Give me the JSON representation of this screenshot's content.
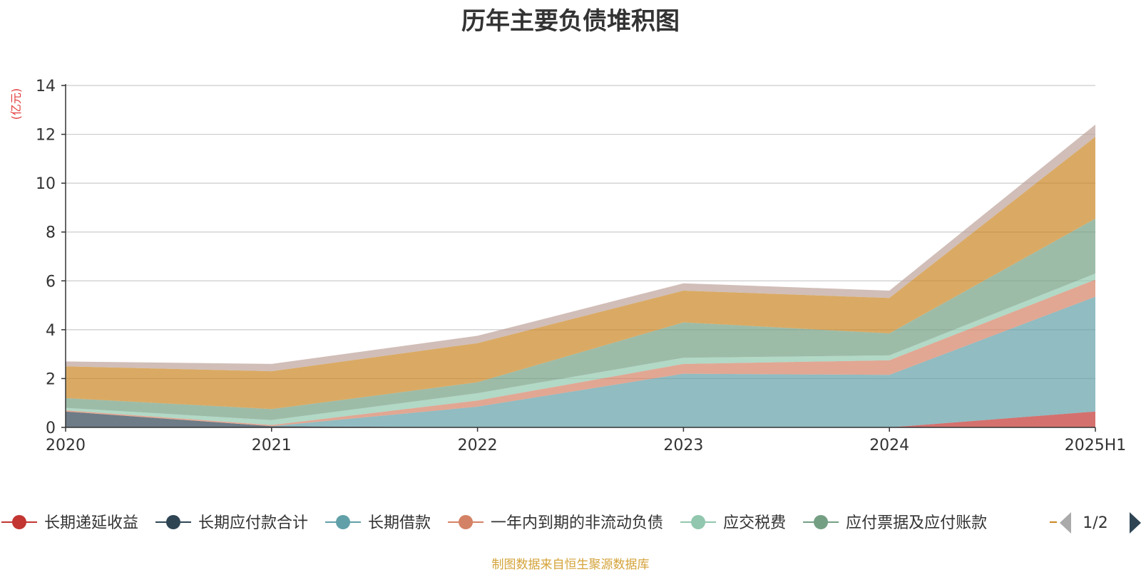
{
  "chart_data": {
    "type": "area",
    "stacked": true,
    "title": "历年主要负债堆积图",
    "unit": "(亿元)",
    "categories": [
      "2020",
      "2021",
      "2022",
      "2023",
      "2024",
      "2025H1"
    ],
    "y_ticks": [
      "0",
      "2",
      "4",
      "6",
      "8",
      "10",
      "12",
      "14"
    ],
    "ylim": [
      0,
      14
    ],
    "grid": true,
    "legend_position": "bottom",
    "legend_page": "1/2",
    "series": [
      {
        "name": "长期递延收益",
        "color": "#c23531",
        "values": [
          0,
          0,
          0,
          0,
          0,
          0.65
        ]
      },
      {
        "name": "长期应付款合计",
        "color": "#2f4554",
        "values": [
          0.65,
          0.05,
          0,
          0,
          0,
          0
        ]
      },
      {
        "name": "长期借款",
        "color": "#61a0a8",
        "values": [
          0,
          0,
          0.85,
          2.2,
          2.15,
          4.7
        ]
      },
      {
        "name": "一年内到期的非流动负债",
        "color": "#d48265",
        "values": [
          0.05,
          0.05,
          0.25,
          0.4,
          0.6,
          0.7
        ]
      },
      {
        "name": "应交税费",
        "color": "#91c7ae",
        "values": [
          0.1,
          0.2,
          0.3,
          0.25,
          0.2,
          0.25
        ]
      },
      {
        "name": "应付票据及应付账款",
        "color": "#749f83",
        "values": [
          0.4,
          0.45,
          0.45,
          1.45,
          0.9,
          2.25
        ]
      },
      {
        "name": "",
        "color": "#ca8622",
        "values": [
          1.3,
          1.55,
          1.6,
          1.3,
          1.45,
          3.35
        ]
      },
      {
        "name": "",
        "color": "#bda29a",
        "values": [
          0.2,
          0.3,
          0.3,
          0.3,
          0.3,
          0.5
        ]
      }
    ]
  },
  "footer": {
    "source": "制图数据来自恒生聚源数据库"
  }
}
